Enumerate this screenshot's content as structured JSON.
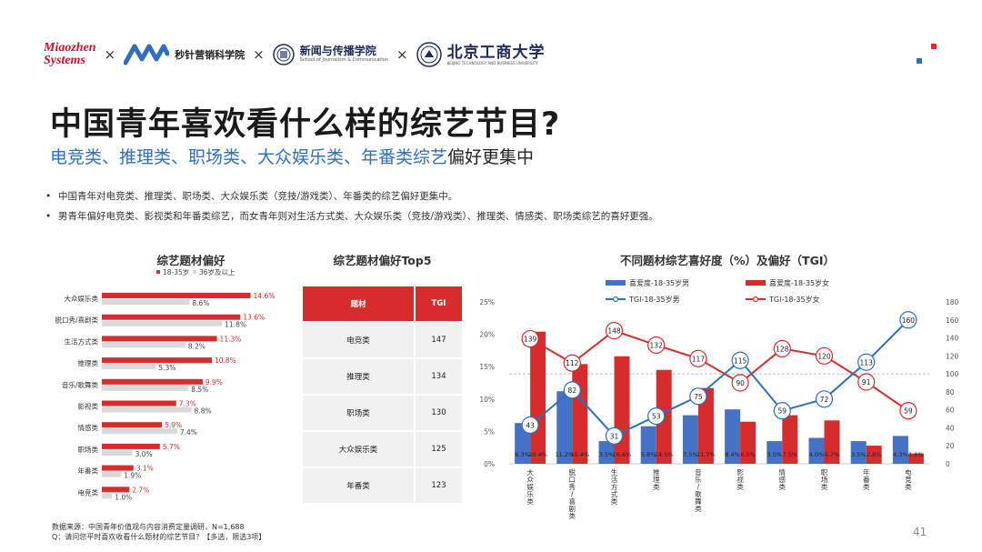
{
  "header": {
    "logo1": [
      "Miaozhen",
      "Systems"
    ],
    "logo2_text": "秒针营销科学院",
    "logo3_main": "新闻与传播学院",
    "logo3_sub": "School of Journalism & Communication",
    "logo4_main": "北京工商大学",
    "logo4_sub": "BEIJING TECHNOLOGY AND BUSINESS UNIVERSITY",
    "separator": "×",
    "accent_red": "#d62c2c",
    "accent_blue": "#2e6fc2"
  },
  "title": "中国青年喜欢看什么样的综艺节目?",
  "subtitle": {
    "highlight": "电竞类、推理类、职场类、大众娱乐类、年番类综艺",
    "rest": "偏好更集中"
  },
  "bullets": [
    "中国青年对电竞类、推理类、职场类、大众娱乐类（竞技/游戏类）、年番类的综艺偏好更集中。",
    "男青年偏好电竞类、影视类和年番类综艺，而女青年则对生活方式类、大众娱乐类（竞技/游戏类）、推理类、情感类、职场类综艺的喜好更强。"
  ],
  "footnote": [
    "数据来源：中国青年价值观与内容消费定量调研，N=1,688",
    "Q：请问您平时喜欢收看什么题材的综艺节目？【多选，限选3项】"
  ],
  "page_number": "41",
  "chart_data": [
    {
      "type": "bar",
      "orientation": "horizontal",
      "title": "综艺题材偏好",
      "categories": [
        "大众娱乐类",
        "脱口秀/喜剧类",
        "生活方式类",
        "推理类",
        "音乐/歌舞类",
        "影视类",
        "情感类",
        "职场类",
        "年番类",
        "电竞类"
      ],
      "series": [
        {
          "name": "18-35岁",
          "color": "#d62c2c",
          "values": [
            14.6,
            13.6,
            11.3,
            10.8,
            9.9,
            7.3,
            5.9,
            5.7,
            3.1,
            2.7
          ],
          "labels": [
            "14.6%",
            "13.6%",
            "11.3%",
            "10.8%",
            "9.9%",
            "7.3%",
            "5.9%",
            "5.7%",
            "3.1%",
            "2.7%"
          ]
        },
        {
          "name": "36岁及以上",
          "color": "#d9d9d9",
          "values": [
            8.6,
            11.8,
            8.2,
            5.3,
            8.5,
            8.8,
            7.4,
            3.0,
            1.9,
            1.0
          ],
          "labels": [
            "8.6%",
            "11.8%",
            "8.2%",
            "5.3%",
            "8.5%",
            "8.8%",
            "7.4%",
            "3.0%",
            "1.9%",
            "1.0%"
          ]
        }
      ],
      "legend": "top"
    },
    {
      "type": "table",
      "title": "综艺题材偏好Top5",
      "columns": [
        "题材",
        "TGI"
      ],
      "rows": [
        [
          "电竞类",
          "147"
        ],
        [
          "推理类",
          "134"
        ],
        [
          "职场类",
          "130"
        ],
        [
          "大众娱乐类",
          "125"
        ],
        [
          "年番类",
          "123"
        ]
      ]
    },
    {
      "type": "bar",
      "title": "不同题材综艺喜好度（%）及偏好（TGI）",
      "categories": [
        "大众娱乐类",
        "脱口秀/喜剧类",
        "生活方式类",
        "推理类",
        "音乐/歌舞类",
        "影视类",
        "情感类",
        "职场类",
        "年番类",
        "电竞类"
      ],
      "category_label_lines": [
        [
          "大",
          "众",
          "娱",
          "乐",
          "类"
        ],
        [
          "脱",
          "口",
          "秀",
          "/",
          "喜",
          "剧",
          "类"
        ],
        [
          "生",
          "活",
          "方",
          "式",
          "类"
        ],
        [
          "推",
          "理",
          "类"
        ],
        [
          "音",
          "乐",
          "/",
          "歌",
          "舞",
          "类"
        ],
        [
          "影",
          "视",
          "类"
        ],
        [
          "情",
          "感",
          "类"
        ],
        [
          "职",
          "场",
          "类"
        ],
        [
          "年",
          "番",
          "类"
        ],
        [
          "电",
          "竞",
          "类"
        ]
      ],
      "left_axis": {
        "min": 0,
        "max": 25,
        "ticks": [
          "0%",
          "5%",
          "10%",
          "15%",
          "20%",
          "25%"
        ]
      },
      "right_axis": {
        "min": 0,
        "max": 180,
        "ticks": [
          "0",
          "20",
          "40",
          "60",
          "80",
          "100",
          "120",
          "140",
          "160",
          "180"
        ]
      },
      "reference_line": 100,
      "series": [
        {
          "name": "喜爱度-18-35岁男",
          "kind": "bar",
          "axis": "left",
          "color": "#4472c4",
          "values": [
            6.3,
            11.2,
            3.5,
            5.8,
            7.5,
            8.4,
            3.5,
            4.0,
            3.5,
            4.3
          ],
          "labels": [
            "6.3%",
            "11.2%",
            "3.5%",
            "5.8%",
            "7.5%",
            "8.4%",
            "3.5%",
            "4.0%",
            "3.5%",
            "4.3%"
          ]
        },
        {
          "name": "喜爱度-18-35岁女",
          "kind": "bar",
          "axis": "left",
          "color": "#d62c2c",
          "values": [
            20.4,
            15.4,
            16.6,
            14.5,
            11.7,
            6.5,
            7.5,
            6.7,
            2.8,
            1.6
          ],
          "labels": [
            "20.4%",
            "15.4%",
            "16.6%",
            "14.5%",
            "11.7%",
            "6.5%",
            "7.5%",
            "6.7%",
            "2.8%",
            "1.6%"
          ]
        },
        {
          "name": "TGI-18-35岁男",
          "kind": "line",
          "axis": "right",
          "color": "#2e6fc2",
          "values": [
            43,
            82,
            31,
            53,
            75,
            115,
            59,
            72,
            113,
            160
          ]
        },
        {
          "name": "TGI-18-35岁女",
          "kind": "line",
          "axis": "right",
          "color": "#d62c2c",
          "values": [
            139,
            112,
            148,
            132,
            117,
            90,
            128,
            120,
            91,
            59
          ]
        }
      ],
      "legend": "top"
    }
  ]
}
